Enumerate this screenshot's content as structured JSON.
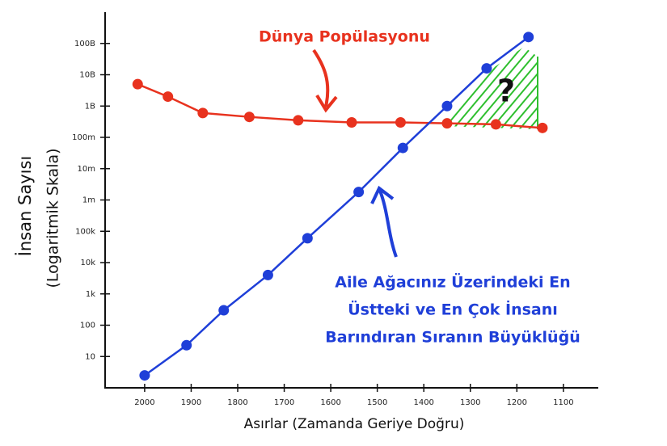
{
  "chart_data": {
    "type": "line",
    "xlabel": "Asırlar (Zamanda Geriye Doğru)",
    "ylabel": [
      "İnsan Sayısı",
      "(Logaritmik Skala)"
    ],
    "log_y": true,
    "xlim": [
      2085,
      1025
    ],
    "ylim": [
      1,
      1000000000000
    ],
    "xticks": [
      2000,
      1900,
      1800,
      1700,
      1600,
      1500,
      1400,
      1300,
      1200,
      1100
    ],
    "yticks": [
      10,
      100,
      {
        "value": 1000,
        "label": "1k"
      },
      {
        "value": 10000,
        "label": "10k"
      },
      {
        "value": 100000,
        "label": "100k"
      },
      {
        "value": 1000000,
        "label": "1m"
      },
      {
        "value": 10000000,
        "label": "10m"
      },
      {
        "value": 100000000,
        "label": "100m"
      },
      {
        "value": 1000000000,
        "label": "1B"
      },
      {
        "value": 10000000000,
        "label": "10B"
      },
      {
        "value": 100000000000,
        "label": "100B"
      }
    ],
    "series": [
      {
        "name": "Dünya Popülasyonu",
        "color": "#e8321e",
        "x": [
          2015,
          1950,
          1875,
          1775,
          1670,
          1555,
          1450,
          1350,
          1245,
          1145
        ],
        "values": [
          5000000000,
          2000000000,
          600000000,
          450000000,
          350000000,
          300000000,
          300000000,
          280000000,
          260000000,
          200000000
        ]
      },
      {
        "name": "Aile Ağacınız Üzerindeki En Üstteki ve En Çok İnsanı Barındıran Sıranın Büyüklüğü",
        "color": "#1f3fd8",
        "x": [
          2000,
          1910,
          1830,
          1735,
          1650,
          1540,
          1445,
          1350,
          1265,
          1175
        ],
        "values": [
          2.5,
          23,
          300,
          4000,
          60000,
          1800000,
          46000000,
          1000000000,
          16000000000,
          160000000000
        ]
      }
    ],
    "annotations": {
      "population": "Dünya Popülasyonu",
      "ancestors": [
        "Aile Ağacınız Üzerindeki En",
        "Üstteki ve En Çok İnsanı",
        "Barındıran Sıranın Büyüklüğü"
      ],
      "question": "?"
    }
  }
}
